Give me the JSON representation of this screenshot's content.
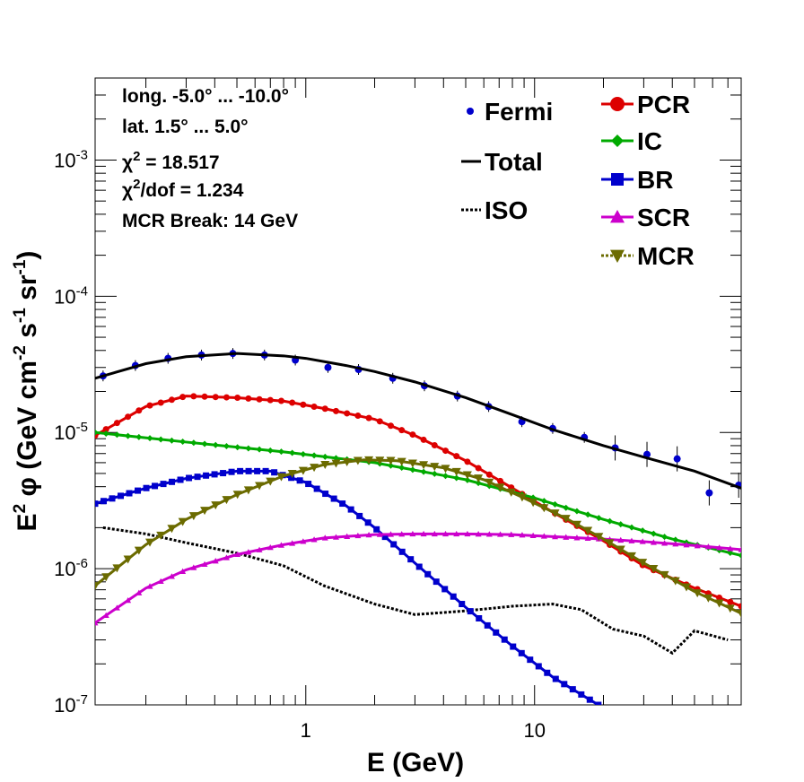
{
  "chart_data": {
    "type": "line",
    "xlabel": "E (GeV)",
    "ylabel": "E^2 φ (GeV cm^-2 s^-1 sr^-1)",
    "xlim": [
      0.12,
      80
    ],
    "ylim": [
      1e-07,
      0.004
    ],
    "xscale": "log",
    "yscale": "log",
    "grid": false,
    "legend_position": "top-right",
    "x_ticks": [
      "1",
      "10"
    ],
    "y_ticks": [
      "10^-7",
      "10^-6",
      "10^-5",
      "10^-4",
      "10^-3"
    ],
    "info_lines": [
      "long. -5.0° ... -10.0°",
      "lat. 1.5° ... 5.0°",
      "χ2 = 18.517",
      "χ2/dof = 1.234",
      "MCR Break: 14 GeV"
    ],
    "series": [
      {
        "name": "Fermi",
        "style": "points",
        "color": "#0000cc",
        "x": [
          0.13,
          0.18,
          0.25,
          0.35,
          0.48,
          0.66,
          0.9,
          1.25,
          1.7,
          2.4,
          3.3,
          4.6,
          6.3,
          8.8,
          12,
          16.5,
          22.5,
          31,
          42,
          58,
          78
        ],
        "y": [
          2.6e-05,
          3.1e-05,
          3.5e-05,
          3.7e-05,
          3.8e-05,
          3.7e-05,
          3.4e-05,
          3e-05,
          2.9e-05,
          2.5e-05,
          2.2e-05,
          1.85e-05,
          1.55e-05,
          1.2e-05,
          1.07e-05,
          9.2e-06,
          7.7e-06,
          6.9e-06,
          6.4e-06,
          3.6e-06,
          4.1e-06
        ]
      },
      {
        "name": "Total",
        "style": "solid",
        "color": "#000000",
        "x": [
          0.12,
          0.2,
          0.3,
          0.5,
          0.8,
          1.0,
          1.5,
          2,
          3,
          5,
          8,
          12,
          20,
          30,
          50,
          80
        ],
        "y": [
          2.5e-05,
          3.2e-05,
          3.6e-05,
          3.8e-05,
          3.65e-05,
          3.5e-05,
          3.1e-05,
          2.8e-05,
          2.35e-05,
          1.8e-05,
          1.35e-05,
          1.05e-05,
          8e-06,
          6.6e-06,
          5.2e-06,
          3.9e-06
        ]
      },
      {
        "name": "ISO",
        "style": "dotted",
        "color": "#000000",
        "x": [
          0.13,
          0.2,
          0.3,
          0.5,
          0.8,
          1.2,
          2,
          3,
          5,
          8,
          12,
          16,
          22,
          30,
          40,
          50,
          70
        ],
        "y": [
          2e-06,
          1.8e-06,
          1.55e-06,
          1.3e-06,
          1.05e-06,
          7.5e-07,
          5.5e-07,
          4.6e-07,
          4.9e-07,
          5.3e-07,
          5.5e-07,
          5e-07,
          3.6e-07,
          3.2e-07,
          2.4e-07,
          3.5e-07,
          3e-07
        ]
      },
      {
        "name": "PCR",
        "style": "line-markers",
        "marker": "circle",
        "color": "#dd0000",
        "x": [
          0.12,
          0.2,
          0.3,
          0.5,
          0.8,
          1.2,
          2,
          3,
          5,
          8,
          12,
          20,
          30,
          50,
          80
        ],
        "y": [
          9.5e-06,
          1.55e-05,
          1.85e-05,
          1.8e-05,
          1.7e-05,
          1.5e-05,
          1.25e-05,
          9.5e-06,
          6.2e-06,
          3.9e-06,
          2.6e-06,
          1.6e-06,
          1.05e-06,
          7.2e-07,
          5.3e-07
        ]
      },
      {
        "name": "IC",
        "style": "line-markers",
        "marker": "diamond",
        "color": "#00aa00",
        "x": [
          0.12,
          0.3,
          0.8,
          2,
          5,
          10,
          20,
          40,
          80
        ],
        "y": [
          1e-05,
          8.5e-06,
          7.2e-06,
          6e-06,
          4.5e-06,
          3.3e-06,
          2.3e-06,
          1.65e-06,
          1.25e-06
        ]
      },
      {
        "name": "BR",
        "style": "line-markers",
        "marker": "square",
        "color": "#0000cc",
        "x": [
          0.12,
          0.2,
          0.3,
          0.5,
          0.7,
          1.0,
          1.5,
          2,
          3,
          5,
          8,
          12,
          19
        ],
        "y": [
          3e-06,
          3.9e-06,
          4.6e-06,
          5.2e-06,
          5.2e-06,
          4.3e-06,
          2.9e-06,
          2e-06,
          1.1e-06,
          5.2e-07,
          2.7e-07,
          1.6e-07,
          1e-07
        ]
      },
      {
        "name": "SCR",
        "style": "line-markers",
        "marker": "triangle-up",
        "color": "#cc00cc",
        "x": [
          0.12,
          0.2,
          0.3,
          0.5,
          0.8,
          1.2,
          2,
          3,
          5,
          8,
          12,
          20,
          30,
          50,
          80
        ],
        "y": [
          4e-07,
          7.2e-07,
          9.8e-07,
          1.27e-06,
          1.5e-06,
          1.68e-06,
          1.78e-06,
          1.8e-06,
          1.8e-06,
          1.78e-06,
          1.72e-06,
          1.65e-06,
          1.58e-06,
          1.48e-06,
          1.38e-06
        ]
      },
      {
        "name": "MCR",
        "style": "line-markers",
        "marker": "triangle-down",
        "color": "#6b6b00",
        "x": [
          0.12,
          0.2,
          0.3,
          0.5,
          0.8,
          1.2,
          1.8,
          2.5,
          4,
          6,
          9,
          14,
          20,
          30,
          50,
          80
        ],
        "y": [
          7.5e-07,
          1.5e-06,
          2.3e-06,
          3.5e-06,
          4.8e-06,
          5.8e-06,
          6.3e-06,
          6.2e-06,
          5.5e-06,
          4.5e-06,
          3.3e-06,
          2.3e-06,
          1.65e-06,
          1.1e-06,
          6.8e-07,
          4.7e-07
        ]
      }
    ]
  }
}
